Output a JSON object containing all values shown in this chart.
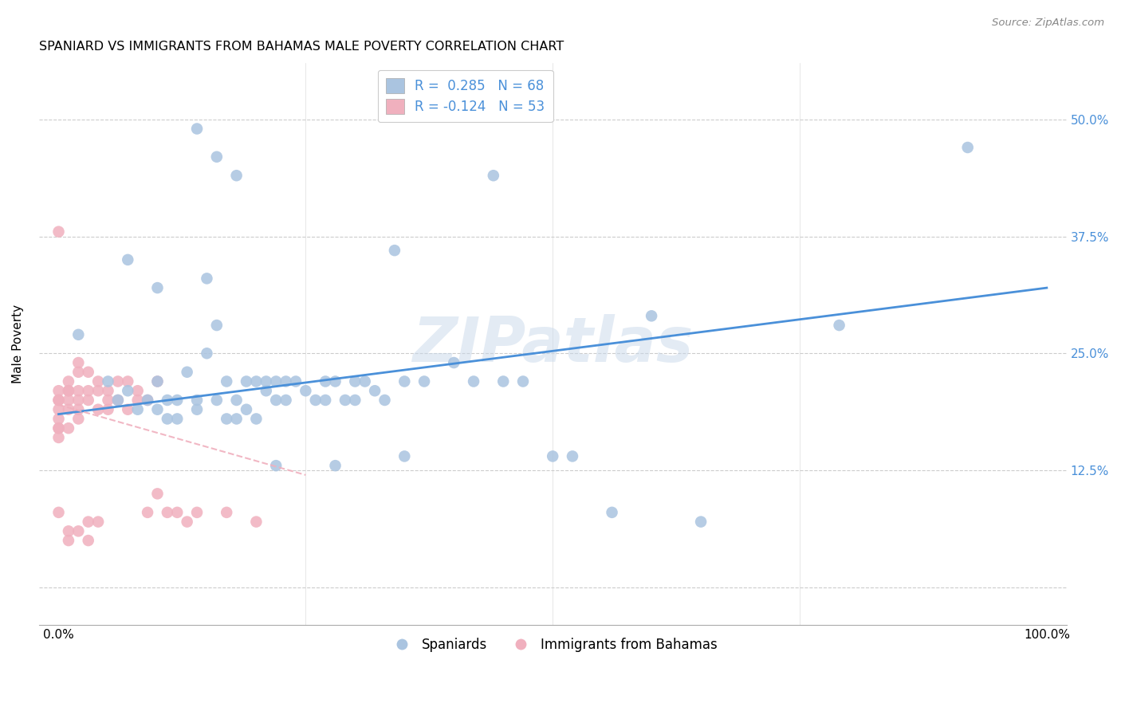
{
  "title": "SPANIARD VS IMMIGRANTS FROM BAHAMAS MALE POVERTY CORRELATION CHART",
  "source": "Source: ZipAtlas.com",
  "ylabel": "Male Poverty",
  "yticks": [
    0.0,
    0.125,
    0.25,
    0.375,
    0.5
  ],
  "ytick_labels": [
    "",
    "12.5%",
    "25.0%",
    "37.5%",
    "50.0%"
  ],
  "xlim": [
    -0.02,
    1.02
  ],
  "ylim": [
    -0.04,
    0.56
  ],
  "watermark": "ZIPatlas",
  "spaniards_color": "#aac4e0",
  "bahamas_color": "#f0b0be",
  "spaniards_line_color": "#4a90d9",
  "bahamas_line_color": "#f0b0be",
  "spaniards_label": "Spaniards",
  "bahamas_label": "Immigrants from Bahamas",
  "legend_r1": "R =  0.285   N = 68",
  "legend_r2": "R = -0.124   N = 53",
  "spaniards_x": [
    0.14,
    0.16,
    0.18,
    0.44,
    0.07,
    0.1,
    0.02,
    0.05,
    0.06,
    0.07,
    0.08,
    0.09,
    0.1,
    0.1,
    0.11,
    0.11,
    0.12,
    0.12,
    0.13,
    0.14,
    0.14,
    0.15,
    0.15,
    0.16,
    0.16,
    0.17,
    0.17,
    0.18,
    0.18,
    0.19,
    0.19,
    0.2,
    0.2,
    0.21,
    0.21,
    0.22,
    0.22,
    0.23,
    0.23,
    0.24,
    0.25,
    0.26,
    0.27,
    0.27,
    0.28,
    0.29,
    0.3,
    0.3,
    0.31,
    0.32,
    0.33,
    0.34,
    0.35,
    0.37,
    0.4,
    0.42,
    0.45,
    0.47,
    0.5,
    0.52,
    0.56,
    0.6,
    0.65,
    0.79,
    0.92,
    0.35,
    0.28,
    0.22
  ],
  "spaniards_y": [
    0.49,
    0.46,
    0.44,
    0.44,
    0.35,
    0.32,
    0.27,
    0.22,
    0.2,
    0.21,
    0.19,
    0.2,
    0.22,
    0.19,
    0.2,
    0.18,
    0.18,
    0.2,
    0.23,
    0.2,
    0.19,
    0.33,
    0.25,
    0.28,
    0.2,
    0.22,
    0.18,
    0.2,
    0.18,
    0.22,
    0.19,
    0.22,
    0.18,
    0.21,
    0.22,
    0.22,
    0.2,
    0.22,
    0.2,
    0.22,
    0.21,
    0.2,
    0.2,
    0.22,
    0.22,
    0.2,
    0.2,
    0.22,
    0.22,
    0.21,
    0.2,
    0.36,
    0.22,
    0.22,
    0.24,
    0.22,
    0.22,
    0.22,
    0.14,
    0.14,
    0.08,
    0.29,
    0.07,
    0.28,
    0.47,
    0.14,
    0.13,
    0.13
  ],
  "bahamas_x": [
    0.0,
    0.0,
    0.0,
    0.0,
    0.0,
    0.0,
    0.0,
    0.0,
    0.0,
    0.0,
    0.01,
    0.01,
    0.01,
    0.01,
    0.01,
    0.01,
    0.01,
    0.02,
    0.02,
    0.02,
    0.02,
    0.02,
    0.02,
    0.02,
    0.03,
    0.03,
    0.03,
    0.03,
    0.04,
    0.04,
    0.04,
    0.04,
    0.05,
    0.05,
    0.05,
    0.06,
    0.06,
    0.07,
    0.07,
    0.08,
    0.08,
    0.09,
    0.09,
    0.1,
    0.1,
    0.11,
    0.12,
    0.13,
    0.14,
    0.17,
    0.2,
    0.03,
    0.01
  ],
  "bahamas_y": [
    0.38,
    0.21,
    0.2,
    0.2,
    0.19,
    0.18,
    0.17,
    0.17,
    0.16,
    0.08,
    0.22,
    0.21,
    0.21,
    0.2,
    0.19,
    0.17,
    0.06,
    0.24,
    0.23,
    0.21,
    0.2,
    0.19,
    0.18,
    0.06,
    0.23,
    0.21,
    0.2,
    0.07,
    0.22,
    0.21,
    0.19,
    0.07,
    0.21,
    0.2,
    0.19,
    0.22,
    0.2,
    0.22,
    0.19,
    0.21,
    0.2,
    0.2,
    0.08,
    0.22,
    0.1,
    0.08,
    0.08,
    0.07,
    0.08,
    0.08,
    0.07,
    0.05,
    0.05
  ],
  "sp_line_x0": 0.0,
  "sp_line_y0": 0.185,
  "sp_line_x1": 1.0,
  "sp_line_y1": 0.32,
  "bah_line_x0": 0.0,
  "bah_line_y0": 0.195,
  "bah_line_x1": 0.25,
  "bah_line_y1": 0.12
}
